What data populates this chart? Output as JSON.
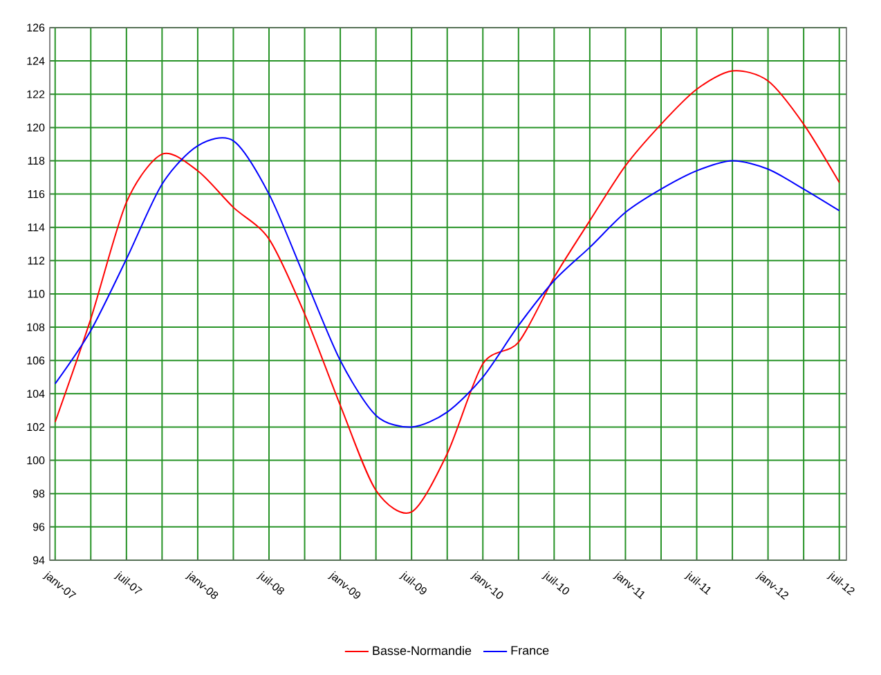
{
  "chart_data": {
    "type": "line",
    "categories": [
      "janv-07",
      null,
      "juil-07",
      null,
      "janv-08",
      null,
      "juil-08",
      null,
      "janv-09",
      null,
      "juil-09",
      null,
      "janv-10",
      null,
      "juil-10",
      null,
      "janv-11",
      null,
      "juil-11",
      null,
      "janv-12",
      null,
      "juil-12"
    ],
    "series": [
      {
        "name": "Basse-Normandie",
        "color": "#ff0000",
        "values": [
          102.3,
          108.5,
          115.5,
          118.4,
          117.4,
          115.2,
          113.3,
          108.8,
          103.3,
          98.2,
          96.9,
          100.4,
          105.8,
          107.1,
          111.0,
          114.4,
          117.7,
          120.2,
          122.3,
          123.4,
          122.8,
          120.2,
          116.7
        ]
      },
      {
        "name": "France",
        "color": "#0000ff",
        "values": [
          104.6,
          107.8,
          112.1,
          116.6,
          118.9,
          119.2,
          116.0,
          111.0,
          106.0,
          102.7,
          102.0,
          102.9,
          105.0,
          108.1,
          110.8,
          112.8,
          114.9,
          116.3,
          117.4,
          118.0,
          117.5,
          116.3,
          115.0
        ]
      }
    ],
    "ylim": [
      94,
      126
    ],
    "yticks": [
      94,
      96,
      98,
      100,
      102,
      104,
      106,
      108,
      110,
      112,
      114,
      116,
      118,
      120,
      122,
      124,
      126
    ],
    "grid": true,
    "legend": "bottom",
    "marker": "none",
    "line_style": "solid"
  }
}
